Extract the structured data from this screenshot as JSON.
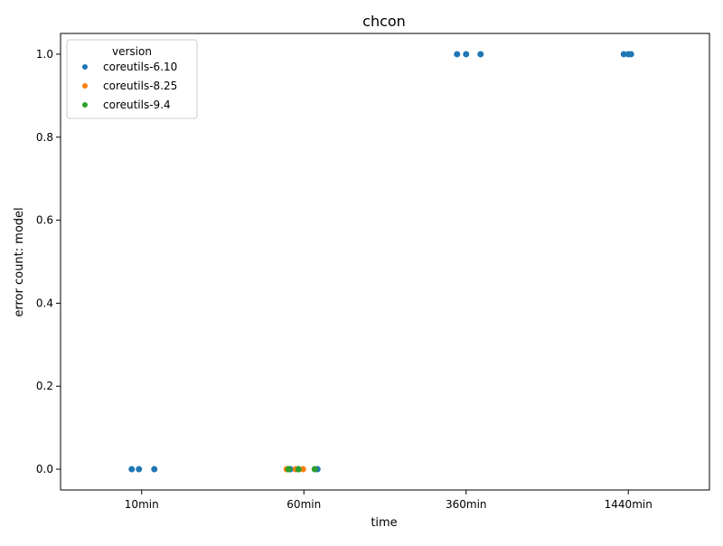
{
  "chart_data": {
    "type": "scatter",
    "title": "chcon",
    "xlabel": "time",
    "ylabel": "error count: model",
    "categories": [
      "10min",
      "60min",
      "360min",
      "1440min"
    ],
    "ylim": [
      -0.05,
      1.05
    ],
    "yticks": [
      0.0,
      0.2,
      0.4,
      0.6,
      0.8,
      1.0
    ],
    "ytick_labels": [
      "0.0",
      "0.2",
      "0.4",
      "0.6",
      "0.8",
      "1.0"
    ],
    "grid": false,
    "legend": {
      "title": "version",
      "placement": "top-left"
    },
    "series": [
      {
        "name": "coreutils-6.10",
        "color": "#1f77b4",
        "points": [
          {
            "x": "10min",
            "y": 0
          },
          {
            "x": "10min",
            "y": 0
          },
          {
            "x": "10min",
            "y": 0
          },
          {
            "x": "60min",
            "y": 0
          },
          {
            "x": "60min",
            "y": 0
          },
          {
            "x": "60min",
            "y": 0
          },
          {
            "x": "360min",
            "y": 1
          },
          {
            "x": "360min",
            "y": 1
          },
          {
            "x": "360min",
            "y": 1
          },
          {
            "x": "1440min",
            "y": 1
          },
          {
            "x": "1440min",
            "y": 1
          },
          {
            "x": "1440min",
            "y": 1
          }
        ]
      },
      {
        "name": "coreutils-8.25",
        "color": "#ff7f0e",
        "points": [
          {
            "x": "60min",
            "y": 0
          },
          {
            "x": "60min",
            "y": 0
          },
          {
            "x": "60min",
            "y": 0
          }
        ]
      },
      {
        "name": "coreutils-9.4",
        "color": "#2ca02c",
        "points": [
          {
            "x": "60min",
            "y": 0
          },
          {
            "x": "60min",
            "y": 0
          },
          {
            "x": "60min",
            "y": 0
          }
        ]
      }
    ]
  }
}
